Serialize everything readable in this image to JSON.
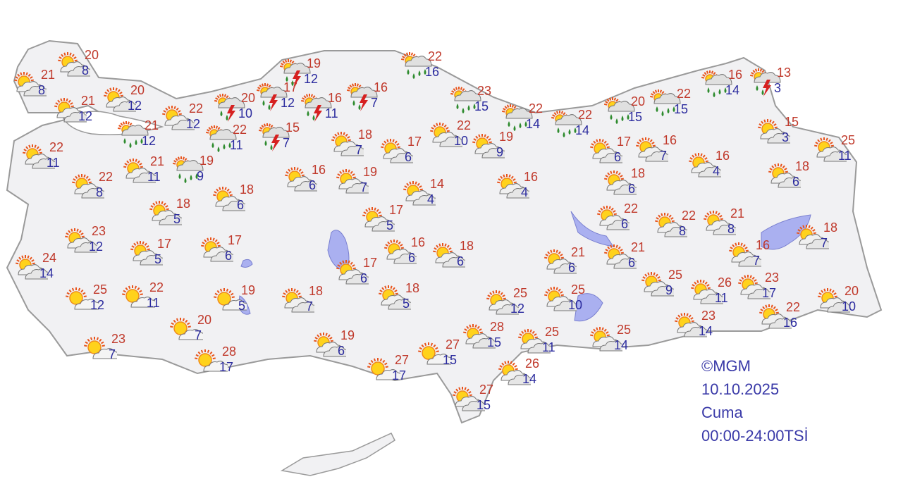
{
  "map": {
    "colors": {
      "land": "#f1f1f3",
      "border": "#9a9a9a",
      "water": "#aab0f0",
      "high_temp": "#c0392b",
      "low_temp": "#2b2b9e"
    },
    "stations": [
      {
        "icon": "partly-cloudy",
        "high": "20",
        "low": "8"
      },
      {
        "icon": "partly-cloudy",
        "high": "21",
        "low": "8"
      },
      {
        "icon": "partly-cloudy",
        "high": "21",
        "low": "12"
      },
      {
        "icon": "partly-cloudy",
        "high": "20",
        "low": "12"
      },
      {
        "icon": "partly-cloudy",
        "high": "22",
        "low": "12"
      },
      {
        "icon": "rain",
        "high": "21",
        "low": "12"
      },
      {
        "icon": "rain",
        "high": "22",
        "low": "11"
      },
      {
        "icon": "thunderstorm",
        "high": "20",
        "low": "10"
      },
      {
        "icon": "thunderstorm",
        "high": "17",
        "low": "12"
      },
      {
        "icon": "thunderstorm",
        "high": "16",
        "low": "11"
      },
      {
        "icon": "thunderstorm",
        "high": "19",
        "low": "12"
      },
      {
        "icon": "thunderstorm",
        "high": "15",
        "low": "7"
      },
      {
        "icon": "thunderstorm",
        "high": "16",
        "low": "7"
      },
      {
        "icon": "rain",
        "high": "22",
        "low": "16"
      },
      {
        "icon": "partly-cloudy",
        "high": "22",
        "low": "11"
      },
      {
        "icon": "partly-cloudy",
        "high": "22",
        "low": "8"
      },
      {
        "icon": "partly-cloudy",
        "high": "21",
        "low": "11"
      },
      {
        "icon": "rain",
        "high": "19",
        "low": "9"
      },
      {
        "icon": "partly-cloudy",
        "high": "18",
        "low": "6"
      },
      {
        "icon": "partly-cloudy",
        "high": "18",
        "low": "5"
      },
      {
        "icon": "partly-cloudy",
        "high": "23",
        "low": "12"
      },
      {
        "icon": "partly-cloudy",
        "high": "17",
        "low": "5"
      },
      {
        "icon": "partly-cloudy",
        "high": "17",
        "low": "6"
      },
      {
        "icon": "partly-cloudy",
        "high": "24",
        "low": "14"
      },
      {
        "icon": "sunny",
        "high": "25",
        "low": "12"
      },
      {
        "icon": "sunny",
        "high": "22",
        "low": "11"
      },
      {
        "icon": "sunny",
        "high": "19",
        "low": "5"
      },
      {
        "icon": "sunny",
        "high": "20",
        "low": "7"
      },
      {
        "icon": "sunny",
        "high": "23",
        "low": "7"
      },
      {
        "icon": "sunny",
        "high": "28",
        "low": "17"
      },
      {
        "icon": "partly-cloudy",
        "high": "18",
        "low": "7"
      },
      {
        "icon": "partly-cloudy",
        "high": "16",
        "low": "6"
      },
      {
        "icon": "partly-cloudy",
        "high": "18",
        "low": "7"
      },
      {
        "icon": "partly-cloudy",
        "high": "19",
        "low": "7"
      },
      {
        "icon": "partly-cloudy",
        "high": "17",
        "low": "6"
      },
      {
        "icon": "partly-cloudy",
        "high": "14",
        "low": "4"
      },
      {
        "icon": "partly-cloudy",
        "high": "17",
        "low": "5"
      },
      {
        "icon": "partly-cloudy",
        "high": "16",
        "low": "6"
      },
      {
        "icon": "partly-cloudy",
        "high": "17",
        "low": "6"
      },
      {
        "icon": "partly-cloudy",
        "high": "18",
        "low": "5"
      },
      {
        "icon": "partly-cloudy",
        "high": "18",
        "low": "6"
      },
      {
        "icon": "partly-cloudy",
        "high": "19",
        "low": "6"
      },
      {
        "icon": "sunny",
        "high": "27",
        "low": "17"
      },
      {
        "icon": "sunny",
        "high": "27",
        "low": "15"
      },
      {
        "icon": "partly-cloudy",
        "high": "22",
        "low": "10"
      },
      {
        "icon": "partly-cloudy",
        "high": "19",
        "low": "9"
      },
      {
        "icon": "rain",
        "high": "23",
        "low": "15"
      },
      {
        "icon": "rain",
        "high": "22",
        "low": "14"
      },
      {
        "icon": "rain",
        "high": "22",
        "low": "14"
      },
      {
        "icon": "rain",
        "high": "20",
        "low": "15"
      },
      {
        "icon": "rain",
        "high": "22",
        "low": "15"
      },
      {
        "icon": "rain",
        "high": "16",
        "low": "14"
      },
      {
        "icon": "thunderstorm",
        "high": "13",
        "low": "3"
      },
      {
        "icon": "partly-cloudy",
        "high": "15",
        "low": "3"
      },
      {
        "icon": "partly-cloudy",
        "high": "25",
        "low": "11"
      },
      {
        "icon": "partly-cloudy",
        "high": "18",
        "low": "6"
      },
      {
        "icon": "partly-cloudy",
        "high": "16",
        "low": "4"
      },
      {
        "icon": "partly-cloudy",
        "high": "16",
        "low": "7"
      },
      {
        "icon": "partly-cloudy",
        "high": "17",
        "low": "6"
      },
      {
        "icon": "partly-cloudy",
        "high": "18",
        "low": "6"
      },
      {
        "icon": "partly-cloudy",
        "high": "16",
        "low": "4"
      },
      {
        "icon": "partly-cloudy",
        "high": "22",
        "low": "6"
      },
      {
        "icon": "partly-cloudy",
        "high": "22",
        "low": "8"
      },
      {
        "icon": "partly-cloudy",
        "high": "21",
        "low": "8"
      },
      {
        "icon": "partly-cloudy",
        "high": "16",
        "low": "7"
      },
      {
        "icon": "partly-cloudy",
        "high": "18",
        "low": "7"
      },
      {
        "icon": "partly-cloudy",
        "high": "21",
        "low": "6"
      },
      {
        "icon": "partly-cloudy",
        "high": "21",
        "low": "6"
      },
      {
        "icon": "partly-cloudy",
        "high": "25",
        "low": "9"
      },
      {
        "icon": "partly-cloudy",
        "high": "26",
        "low": "11"
      },
      {
        "icon": "partly-cloudy",
        "high": "23",
        "low": "17"
      },
      {
        "icon": "partly-cloudy",
        "high": "20",
        "low": "10"
      },
      {
        "icon": "partly-cloudy",
        "high": "22",
        "low": "16"
      },
      {
        "icon": "partly-cloudy",
        "high": "23",
        "low": "14"
      },
      {
        "icon": "partly-cloudy",
        "high": "25",
        "low": "12"
      },
      {
        "icon": "partly-cloudy",
        "high": "25",
        "low": "10"
      },
      {
        "icon": "partly-cloudy",
        "high": "25",
        "low": "14"
      },
      {
        "icon": "partly-cloudy",
        "high": "25",
        "low": "11"
      },
      {
        "icon": "partly-cloudy",
        "high": "28",
        "low": "15"
      },
      {
        "icon": "partly-cloudy",
        "high": "26",
        "low": "14"
      },
      {
        "icon": "partly-cloudy",
        "high": "27",
        "low": "15"
      }
    ]
  },
  "info": {
    "copyright": "©MGM",
    "date": "10.10.2025",
    "day": "Cuma",
    "time_range": "00:00-24:00TSİ"
  }
}
